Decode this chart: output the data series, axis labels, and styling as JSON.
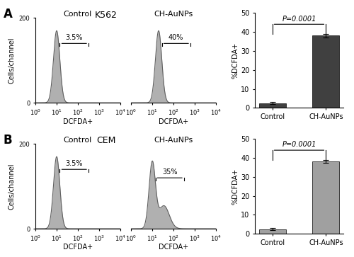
{
  "title_A": "K562",
  "title_B": "CEM",
  "label_A": "A",
  "label_B": "B",
  "flow_ylabel": "Cells/channel",
  "flow_xlabel": "DCFDA+",
  "bar_ylabel": "%DCFDA+",
  "bar_xlabel_control": "Control",
  "bar_xlabel_aunps": "CH-AuNPs",
  "bar_ylim": [
    0,
    50
  ],
  "bar_yticks": [
    0,
    10,
    20,
    30,
    40,
    50
  ],
  "pvalue_text": "P=0.0001",
  "A_control_pct": "3.5%",
  "A_aunps_pct": "40%",
  "B_control_pct": "3.5%",
  "B_aunps_pct": "35%",
  "A_bar_control_val": 2.5,
  "A_bar_aunps_val": 38.0,
  "A_bar_control_err": 0.5,
  "A_bar_aunps_err": 0.8,
  "B_bar_control_val": 2.5,
  "B_bar_aunps_val": 38.0,
  "B_bar_control_err": 0.5,
  "B_bar_aunps_err": 0.8,
  "color_A_dark": "#404040",
  "color_B_light": "#a0a0a0",
  "flow_fill_color": "#b0b0b0",
  "flow_edge_color": "#606060",
  "bg_color": "#ffffff",
  "flow_ylim": [
    0,
    200
  ],
  "flow_yticks": [
    0,
    200
  ],
  "flow_xticks": [
    0,
    1,
    2,
    3,
    4
  ]
}
